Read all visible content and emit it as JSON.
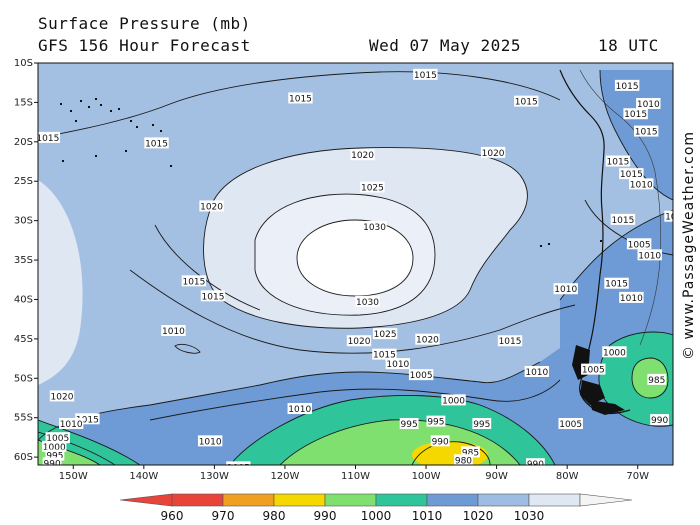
{
  "header": {
    "title": "Surface Pressure (mb)",
    "model": "GFS 156 Hour Forecast",
    "date": "Wed 07 May 2025",
    "time": "18 UTC"
  },
  "credit": "© www.PassageWeather.com",
  "map": {
    "lat_labels": [
      "10S",
      "15S",
      "20S",
      "25S",
      "30S",
      "35S",
      "40S",
      "45S",
      "50S",
      "55S",
      "60S"
    ],
    "lon_labels": [
      "150W",
      "140W",
      "130W",
      "120W",
      "110W",
      "100W",
      "90W",
      "80W",
      "70W"
    ],
    "isobar_labels": [
      {
        "text": "1015",
        "lon": -100.1,
        "lat": -11.5
      },
      {
        "text": "1015",
        "lon": -117.8,
        "lat": -14.5
      },
      {
        "text": "1015",
        "lon": -85.8,
        "lat": -14.9
      },
      {
        "text": "1015",
        "lon": -138.2,
        "lat": -20.2
      },
      {
        "text": "1015",
        "lon": -153.6,
        "lat": -19.5
      },
      {
        "text": "1020",
        "lon": -109.0,
        "lat": -21.7
      },
      {
        "text": "1020",
        "lon": -90.5,
        "lat": -21.4
      },
      {
        "text": "1025",
        "lon": -107.6,
        "lat": -25.8
      },
      {
        "text": "1020",
        "lon": -130.4,
        "lat": -28.2
      },
      {
        "text": "1030",
        "lon": -107.3,
        "lat": -30.8
      },
      {
        "text": "1015",
        "lon": -132.9,
        "lat": -37.7
      },
      {
        "text": "1015",
        "lon": -130.2,
        "lat": -39.6
      },
      {
        "text": "1030",
        "lon": -108.3,
        "lat": -40.3
      },
      {
        "text": "1010",
        "lon": -135.8,
        "lat": -44.0
      },
      {
        "text": "1025",
        "lon": -105.8,
        "lat": -44.4
      },
      {
        "text": "1020",
        "lon": -109.5,
        "lat": -45.3
      },
      {
        "text": "1020",
        "lon": -99.8,
        "lat": -45.1
      },
      {
        "text": "1015",
        "lon": -88.1,
        "lat": -45.3
      },
      {
        "text": "1015",
        "lon": -105.9,
        "lat": -47.0
      },
      {
        "text": "1010",
        "lon": -104.0,
        "lat": -48.2
      },
      {
        "text": "1005",
        "lon": -100.7,
        "lat": -49.6
      },
      {
        "text": "1010",
        "lon": -84.3,
        "lat": -49.2
      },
      {
        "text": "1010",
        "lon": -117.9,
        "lat": -53.9
      },
      {
        "text": "1000",
        "lon": -96.1,
        "lat": -52.8
      },
      {
        "text": "995",
        "lon": -102.4,
        "lat": -55.8
      },
      {
        "text": "995",
        "lon": -98.6,
        "lat": -55.5
      },
      {
        "text": "995",
        "lon": -92.1,
        "lat": -55.8
      },
      {
        "text": "1005",
        "lon": -79.5,
        "lat": -55.8
      },
      {
        "text": "1015",
        "lon": -148.0,
        "lat": -55.2
      },
      {
        "text": "1010",
        "lon": -150.3,
        "lat": -55.8
      },
      {
        "text": "1020",
        "lon": -151.6,
        "lat": -52.3
      },
      {
        "text": "1010",
        "lon": -130.6,
        "lat": -58.0
      },
      {
        "text": "1005",
        "lon": -152.2,
        "lat": -57.6
      },
      {
        "text": "1000",
        "lon": -152.7,
        "lat": -58.7
      },
      {
        "text": "995",
        "lon": -152.6,
        "lat": -59.8
      },
      {
        "text": "990",
        "lon": -153.0,
        "lat": -60.8
      },
      {
        "text": "990",
        "lon": -98.0,
        "lat": -58.0
      },
      {
        "text": "985",
        "lon": -93.7,
        "lat": -59.4
      },
      {
        "text": "980",
        "lon": -94.7,
        "lat": -60.4
      },
      {
        "text": "990",
        "lon": -84.5,
        "lat": -60.9
      },
      {
        "text": "1005",
        "lon": -126.6,
        "lat": -61.3
      },
      {
        "text": "1010",
        "lon": -80.2,
        "lat": -38.7
      },
      {
        "text": "1005",
        "lon": -76.3,
        "lat": -48.9
      },
      {
        "text": "1000",
        "lon": -73.3,
        "lat": -46.7
      },
      {
        "text": "985",
        "lon": -67.3,
        "lat": -50.2
      },
      {
        "text": "990",
        "lon": -66.9,
        "lat": -55.3
      },
      {
        "text": "1015",
        "lon": -72.8,
        "lat": -22.5
      },
      {
        "text": "1015",
        "lon": -70.9,
        "lat": -24.1
      },
      {
        "text": "1010",
        "lon": -69.5,
        "lat": -25.4
      },
      {
        "text": "1015",
        "lon": -72.1,
        "lat": -29.9
      },
      {
        "text": "1005",
        "lon": -69.8,
        "lat": -33.0
      },
      {
        "text": "1010",
        "lon": -68.3,
        "lat": -34.4
      },
      {
        "text": "1005",
        "lon": -64.5,
        "lat": -29.5
      },
      {
        "text": "1015",
        "lon": -73.0,
        "lat": -38.0
      },
      {
        "text": "1010",
        "lon": -70.9,
        "lat": -39.8
      },
      {
        "text": "1015",
        "lon": -71.5,
        "lat": -12.9
      },
      {
        "text": "1010",
        "lon": -68.5,
        "lat": -15.2
      },
      {
        "text": "1015",
        "lon": -70.3,
        "lat": -16.5
      },
      {
        "text": "1015",
        "lon": -68.8,
        "lat": -18.7
      }
    ]
  },
  "colorbar": {
    "labels": [
      "960",
      "970",
      "980",
      "990",
      "1000",
      "1010",
      "1020",
      "1030"
    ],
    "colors": [
      "#e8443a",
      "#f0a020",
      "#f5d800",
      "#7fe070",
      "#30c49a",
      "#6e9bd6",
      "#9fbde2",
      "#dfe7f3"
    ]
  }
}
